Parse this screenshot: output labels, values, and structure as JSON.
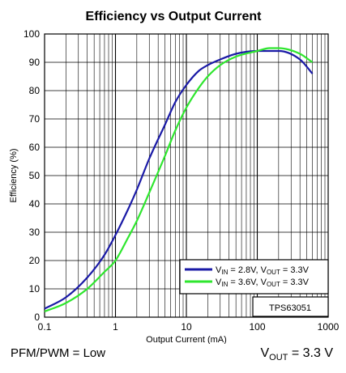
{
  "chart_data": {
    "type": "line",
    "title": "Efficiency vs Output Current",
    "xlabel": "Output Current (mA)",
    "ylabel": "Efficiency (%)",
    "xscale": "log",
    "xlim": [
      0.1,
      1000
    ],
    "ylim": [
      0,
      100
    ],
    "grid": true,
    "legend_position": "bottom-right",
    "x_tick_labels": [
      "0.1",
      "1",
      "10",
      "100",
      "1000"
    ],
    "y_tick_labels": [
      "0",
      "10",
      "20",
      "30",
      "40",
      "50",
      "60",
      "70",
      "80",
      "90",
      "100"
    ],
    "annotation": "TPS63051",
    "series": [
      {
        "name": "VIN = 2.8V, VOUT = 3.3V",
        "legend": {
          "v1": "V",
          "s1": "IN",
          "t1": " = 2.8V, V",
          "s2": "OUT",
          "t2": " = 3.3V"
        },
        "color": "#1a1aa6",
        "x": [
          0.1,
          0.2,
          0.4,
          0.7,
          1,
          1.5,
          2,
          3,
          5,
          7,
          10,
          15,
          20,
          30,
          50,
          100,
          200,
          400,
          600
        ],
        "y": [
          3,
          7,
          14,
          22,
          29,
          38,
          45,
          56,
          68,
          76,
          82,
          87,
          89,
          91,
          93,
          94,
          94,
          91,
          86
        ]
      },
      {
        "name": "VIN = 3.6V, VOUT = 3.3V",
        "legend": {
          "v1": "V",
          "s1": "IN",
          "t1": " = 3.6V, V",
          "s2": "OUT",
          "t2": " = 3.3V"
        },
        "color": "#2ee62e",
        "x": [
          0.1,
          0.2,
          0.4,
          0.7,
          1,
          1.5,
          2,
          3,
          5,
          7,
          10,
          15,
          20,
          30,
          50,
          100,
          150,
          200,
          400,
          600
        ],
        "y": [
          2,
          5,
          10,
          16,
          20,
          28,
          34,
          44,
          57,
          66,
          74,
          81,
          85,
          89,
          92,
          94,
          95,
          95,
          93,
          90
        ]
      }
    ]
  },
  "footer": {
    "left": "PFM/PWM = Low",
    "right_main": "V",
    "right_sub": "OUT",
    "right_rest": " = 3.3 V"
  }
}
